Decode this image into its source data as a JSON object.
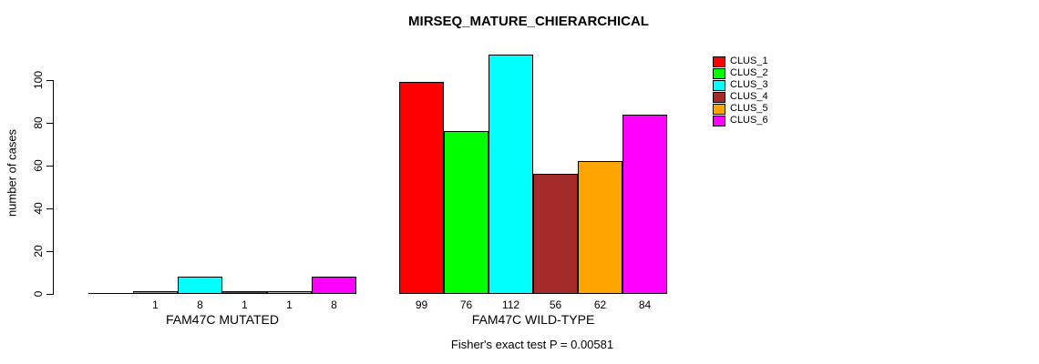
{
  "chart_data": {
    "type": "bar",
    "title": "MIRSEQ_MATURE_CHIERARCHICAL",
    "ylabel": "number of cases",
    "xlabel": "",
    "categories": [
      "FAM47C MUTATED",
      "FAM47C WILD-TYPE"
    ],
    "ylim": [
      0,
      112
    ],
    "yticks": [
      0,
      20,
      40,
      60,
      80,
      100
    ],
    "grid": false,
    "legend_position": "right",
    "series": [
      {
        "name": "CLUS_1",
        "color": "#FF0000",
        "values": [
          0,
          99
        ]
      },
      {
        "name": "CLUS_2",
        "color": "#00FF00",
        "values": [
          1,
          76
        ]
      },
      {
        "name": "CLUS_3",
        "color": "#00FFFF",
        "values": [
          8,
          112
        ]
      },
      {
        "name": "CLUS_4",
        "color": "#A52A2A",
        "values": [
          1,
          56
        ]
      },
      {
        "name": "CLUS_5",
        "color": "#FFA500",
        "values": [
          1,
          62
        ]
      },
      {
        "name": "CLUS_6",
        "color": "#FF00FF",
        "values": [
          8,
          84
        ]
      }
    ],
    "bar_value_labels": [
      [
        "",
        "1",
        "8",
        "1",
        "1",
        "8"
      ],
      [
        "99",
        "76",
        "112",
        "56",
        "62",
        "84"
      ]
    ],
    "annotation": "Fisher's exact test P = 0.00581"
  }
}
